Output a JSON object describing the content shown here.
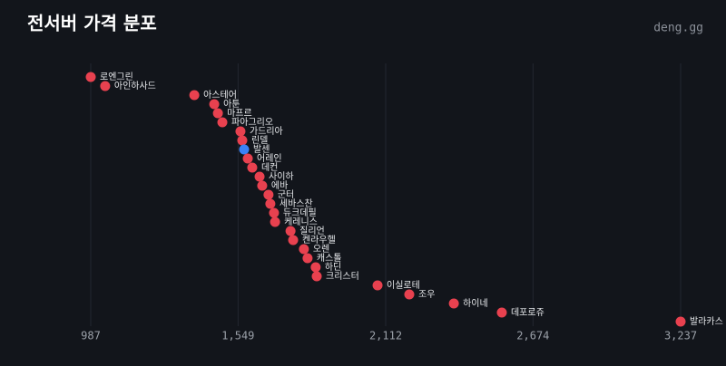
{
  "chart_data": {
    "type": "scatter",
    "title": "전서버 가격 분포",
    "watermark": "deng.gg",
    "categories": [
      "로엔그린",
      "아인하사드",
      "아스테어",
      "아툰",
      "마프르",
      "파아그리오",
      "가드리아",
      "린델",
      "발센",
      "어레인",
      "데컨",
      "사이하",
      "에바",
      "군터",
      "세바스찬",
      "듀크데필",
      "케레니스",
      "질리언",
      "켄라우헬",
      "오렌",
      "캐스톨",
      "하딘",
      "크리스터",
      "이실로테",
      "조우",
      "하이네",
      "데포로쥬",
      "발라카스"
    ],
    "x": [
      987,
      1042,
      1382,
      1458,
      1472,
      1489,
      1558,
      1565,
      1572,
      1586,
      1603,
      1631,
      1641,
      1665,
      1672,
      1686,
      1690,
      1749,
      1759,
      1800,
      1814,
      1845,
      1849,
      2081,
      2202,
      2372,
      2555,
      3237
    ],
    "colors": [
      "#e8414f",
      "#e8414f",
      "#e8414f",
      "#e8414f",
      "#e8414f",
      "#e8414f",
      "#e8414f",
      "#e8414f",
      "#3b82f6",
      "#e8414f",
      "#e8414f",
      "#e8414f",
      "#e8414f",
      "#e8414f",
      "#e8414f",
      "#e8414f",
      "#e8414f",
      "#e8414f",
      "#e8414f",
      "#e8414f",
      "#e8414f",
      "#e8414f",
      "#e8414f",
      "#e8414f",
      "#e8414f",
      "#e8414f",
      "#e8414f",
      "#e8414f"
    ],
    "xlim": [
      987,
      3237
    ],
    "xticks": [
      987,
      {
        "value": 1549,
        "label": "1,549"
      },
      {
        "value": 2112,
        "label": "2,112"
      },
      {
        "value": 2674,
        "label": "2,674"
      },
      {
        "value": 3237,
        "label": "3,237"
      }
    ],
    "grid": true
  }
}
